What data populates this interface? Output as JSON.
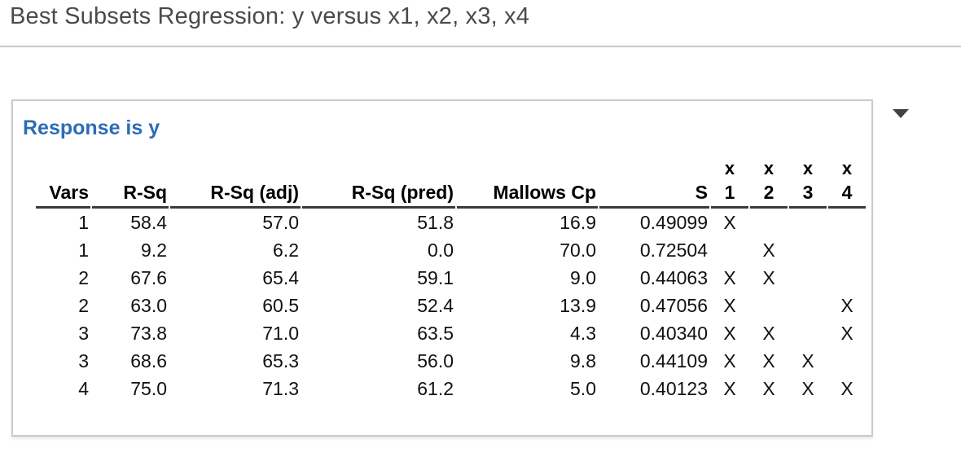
{
  "page": {
    "title": "Best Subsets Regression: y versus x1, x2, x3, x4"
  },
  "panel": {
    "heading": "Response is y",
    "collapse_icon": "triangle-down-icon"
  },
  "colors": {
    "heading_blue": "#2c6cb5",
    "title_gray": "#4a4a4a",
    "header_rule_dark": "#3a3a3a",
    "panel_border": "#c7cbcf"
  },
  "table": {
    "top_headers": [
      "",
      "",
      "",
      "",
      "",
      "",
      "x",
      "x",
      "x",
      "x"
    ],
    "headers": [
      "Vars",
      "R-Sq",
      "R-Sq (adj)",
      "R-Sq (pred)",
      "Mallows Cp",
      "S",
      "1",
      "2",
      "3",
      "4"
    ],
    "rows": [
      [
        "1",
        "58.4",
        "57.0",
        "51.8",
        "16.9",
        "0.49099",
        "X",
        "",
        "",
        ""
      ],
      [
        "1",
        "9.2",
        "6.2",
        "0.0",
        "70.0",
        "0.72504",
        "",
        "X",
        "",
        ""
      ],
      [
        "2",
        "67.6",
        "65.4",
        "59.1",
        "9.0",
        "0.44063",
        "X",
        "X",
        "",
        ""
      ],
      [
        "2",
        "63.0",
        "60.5",
        "52.4",
        "13.9",
        "0.47056",
        "X",
        "",
        "",
        "X"
      ],
      [
        "3",
        "73.8",
        "71.0",
        "63.5",
        "4.3",
        "0.40340",
        "X",
        "X",
        "",
        "X"
      ],
      [
        "3",
        "68.6",
        "65.3",
        "56.0",
        "9.8",
        "0.44109",
        "X",
        "X",
        "X",
        ""
      ],
      [
        "4",
        "75.0",
        "71.3",
        "61.2",
        "5.0",
        "0.40123",
        "X",
        "X",
        "X",
        "X"
      ]
    ]
  }
}
